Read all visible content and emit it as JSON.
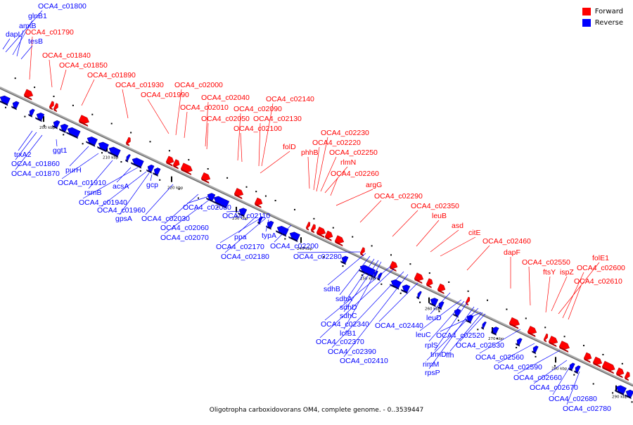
{
  "legend": {
    "forward_label": "Forward",
    "reverse_label": "Reverse",
    "forward_color": "#ff0000",
    "reverse_color": "#0000ff"
  },
  "caption": "Oligotropha carboxidovorans OM4, complete genome. - 0..3539447",
  "ticks": [
    "200 kbp",
    "210 kbp",
    "220 kbp",
    "230 kbp",
    "240 kbp",
    "250 kbp",
    "260 kbp",
    "270 kbp",
    "280 kbp",
    "290 kbp"
  ],
  "forward_labels": [
    "OCA4_c01790",
    "OCA4_c01840",
    "OCA4_c01850",
    "OCA4_c01890",
    "OCA4_c01930",
    "OCA4_c01990",
    "OCA4_c02000",
    "OCA4_c02010",
    "OCA4_c02040",
    "OCA4_c02050",
    "OCA4_c02090",
    "OCA4_c02100",
    "OCA4_c02130",
    "OCA4_c02140",
    "folD",
    "phhB",
    "OCA4_c02220",
    "OCA4_c02230",
    "OCA4_c02250",
    "rlmN",
    "OCA4_c02260",
    "argG",
    "OCA4_c02290",
    "OCA4_c02350",
    "leuB",
    "asd",
    "citE",
    "OCA4_c02460",
    "dapF",
    "OCA4_c02550",
    "ftsY",
    "ispZ",
    "folE1",
    "OCA4_c02600",
    "OCA4_c02610"
  ],
  "reverse_labels": [
    "OCA4_c01800",
    "glnB1",
    "amtB",
    "tesB",
    "dapL",
    "trxA2",
    "OCA4_c01860",
    "OCA4_c01870",
    "ggt1",
    "purH",
    "OCA4_c01910",
    "rsmB",
    "acsA",
    "OCA4_c01940",
    "OCA4_c01960",
    "gpsA",
    "gcp",
    "OCA4_c02030",
    "OCA4_c02060",
    "OCA4_c02070",
    "OCA4_c02080",
    "OCA4_c02110",
    "ppa",
    "typA",
    "OCA4_c02170",
    "OCA4_c02180",
    "OCA4_c02200",
    "OCA4_c02280",
    "sdhB",
    "sdhA",
    "sdhD",
    "sdhC",
    "OCA4_c02340",
    "lcfB1",
    "OCA4_c02370",
    "OCA4_c02390",
    "OCA4_c02410",
    "OCA4_c02440",
    "leuD",
    "leuC",
    "rplS",
    "trmD",
    "rimM",
    "rpsP",
    "OCA4_c02520",
    "OCA4_c02530",
    "ffh",
    "OCA4_c02560",
    "OCA4_c02590",
    "OCA4_c02660",
    "OCA4_c02670",
    "OCA4_c02680",
    "OCA4_c02780"
  ]
}
